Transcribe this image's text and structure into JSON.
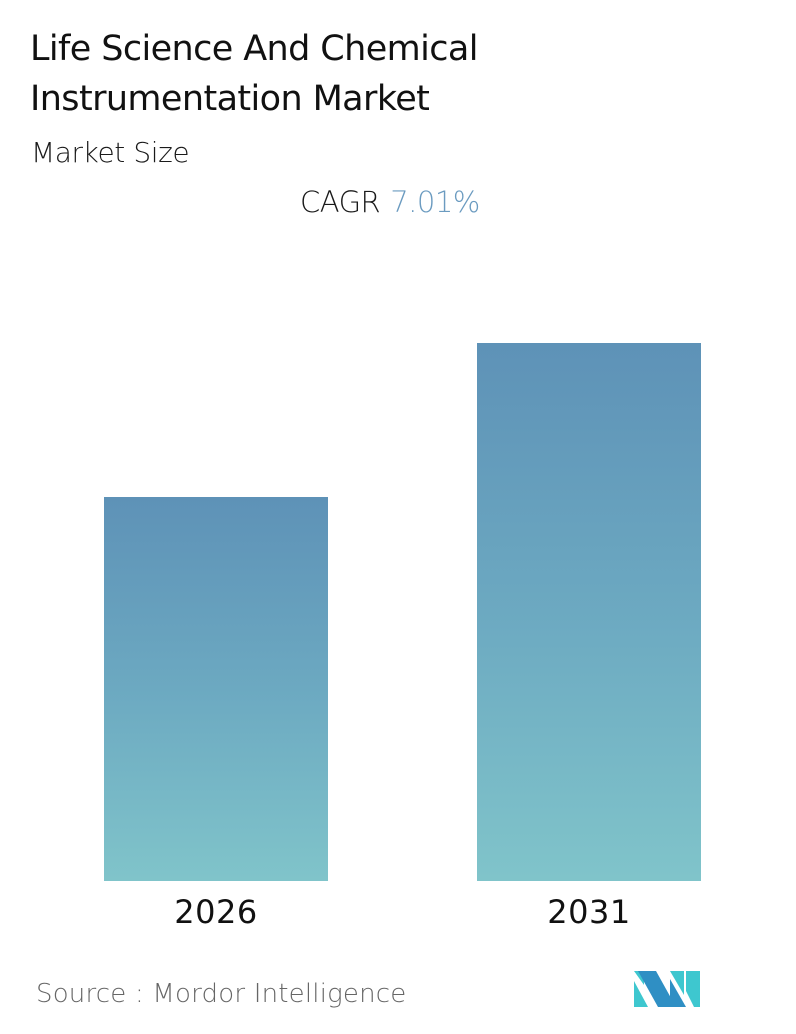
{
  "header": {
    "title": "Life Science And Chemical Instrumentation Market",
    "subtitle": "Market Size",
    "cagr_label": "CAGR",
    "cagr_value": "7.01%"
  },
  "footer": {
    "source": "Source :  Mordor Intelligence",
    "logo": "mordor-intelligence-logo"
  },
  "colors": {
    "bar_top": "#5e92b7",
    "bar_bottom": "#80c4ca",
    "cagr_value": "#6b9bc0"
  },
  "chart_data": {
    "type": "bar",
    "title": "Life Science And Chemical Instrumentation Market",
    "subtitle": "Market Size",
    "categories": [
      "2026",
      "2031"
    ],
    "values": [
      71.3,
      100
    ],
    "value_note": "Relative bar heights (no numeric values shown); 2031 = 100",
    "annotations": [
      "CAGR 7.01%"
    ],
    "xlabel": "",
    "ylabel": "",
    "grid": false,
    "legend": null,
    "source": "Mordor Intelligence"
  }
}
